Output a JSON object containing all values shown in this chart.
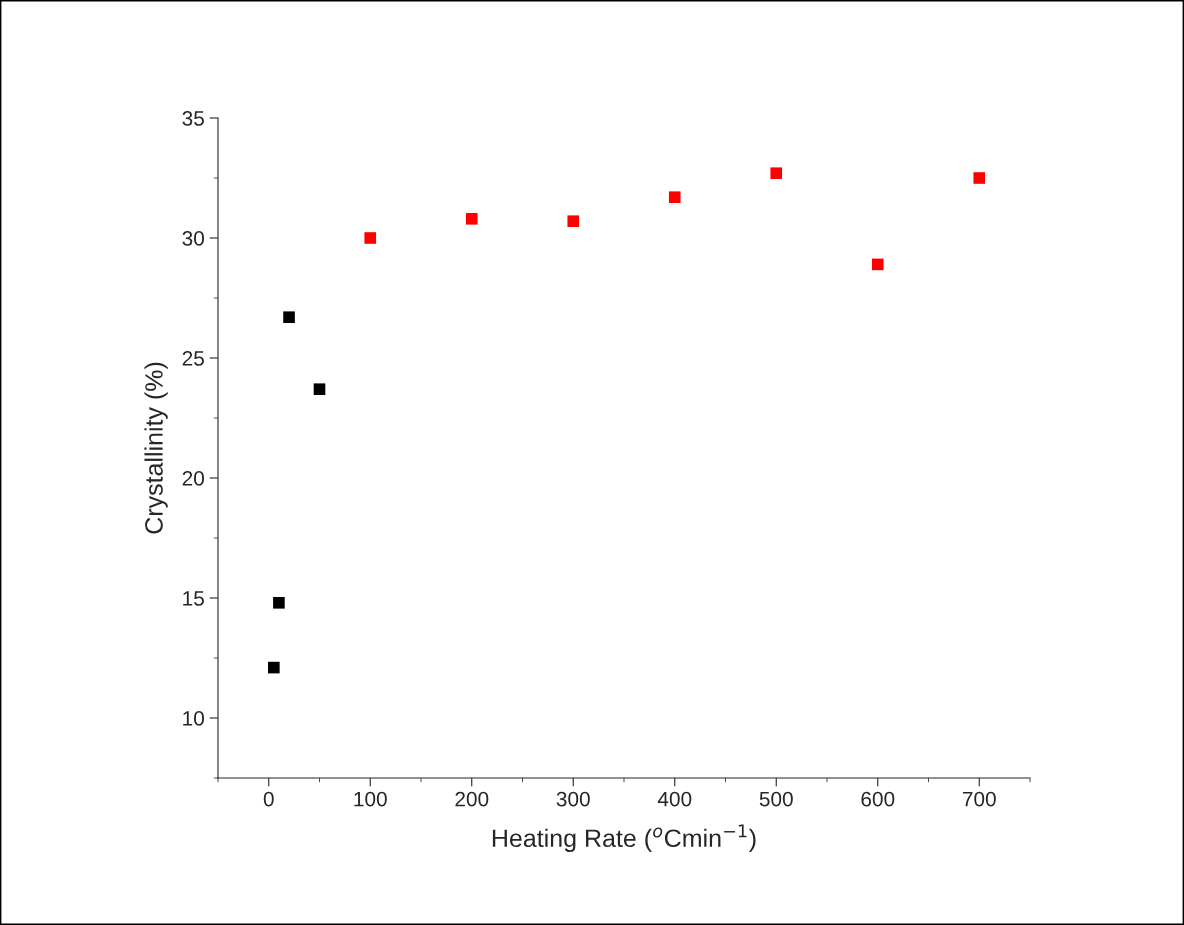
{
  "chart_data": {
    "type": "scatter",
    "xlabel": "Heating Rate ($^{o}$Cmin$^{−1}$)",
    "ylabel": "Crystallinity (%)",
    "series": [
      {
        "color": "#ff0000",
        "x": [
          100,
          200,
          300,
          400,
          500,
          600,
          700
        ],
        "values": [
          30.0,
          30.8,
          30.7,
          31.7,
          32.7,
          28.9,
          32.5
        ]
      },
      {
        "color": "#000000",
        "x": [
          5,
          10,
          20,
          50
        ],
        "values": [
          12.1,
          14.8,
          26.7,
          23.7
        ]
      }
    ],
    "xlim": [
      -50,
      750
    ],
    "xticks": [
      0,
      100,
      200,
      300,
      400,
      500,
      600,
      700
    ],
    "ylim": [
      7.5,
      35
    ],
    "yticks": [
      10,
      15,
      20,
      25,
      30,
      35
    ],
    "marker": "square",
    "grid": false
  }
}
